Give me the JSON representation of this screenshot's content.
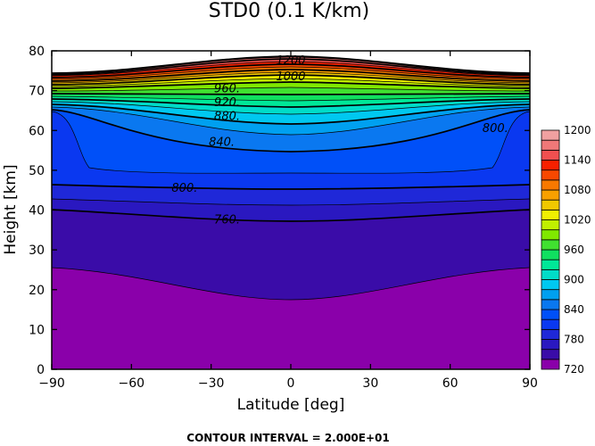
{
  "chart_data": {
    "type": "contour",
    "title": "STD0 (0.1 K/km)",
    "xlabel": "Latitude [deg]",
    "ylabel": "Height [km]",
    "xlim": [
      -90,
      90
    ],
    "ylim": [
      0,
      80
    ],
    "x_ticks": [
      -90,
      -60,
      -30,
      0,
      30,
      60,
      90
    ],
    "y_ticks": [
      0,
      10,
      20,
      30,
      40,
      50,
      60,
      70,
      80
    ],
    "x_tick_labels": [
      "−90",
      "−60",
      "−30",
      "0",
      "30",
      "60",
      "90"
    ],
    "y_tick_labels": [
      "0",
      "10",
      "20",
      "30",
      "40",
      "50",
      "60",
      "70",
      "80"
    ],
    "contour_interval_text": "CONTOUR INTERVAL = 2.000E+01",
    "grid": false,
    "colorbar": {
      "placement": "right",
      "levels": [
        720,
        740,
        760,
        780,
        800,
        820,
        840,
        860,
        880,
        900,
        920,
        940,
        960,
        980,
        1000,
        1020,
        1040,
        1060,
        1080,
        1100,
        1120,
        1140,
        1160,
        1180,
        1200
      ],
      "labels": [
        "720",
        "780",
        "840",
        "900",
        "960",
        "1020",
        "1080",
        "1140",
        "1200"
      ],
      "colors": [
        "#8a00aa",
        "#3a0ca8",
        "#2a18c0",
        "#1f28d8",
        "#0a38f0",
        "#0050f8",
        "#0a78f0",
        "#00a0f0",
        "#00c8f0",
        "#00dcc8",
        "#00e898",
        "#10e060",
        "#40e030",
        "#80e800",
        "#c0f000",
        "#f0f000",
        "#f0c800",
        "#f8a000",
        "#f87800",
        "#f84800",
        "#f82000",
        "#f05050",
        "#f07878",
        "#f0a0a0"
      ]
    },
    "contour_labels": [
      {
        "text": "1200",
        "lat": 0,
        "z": 77.5
      },
      {
        "text": "1000",
        "lat": 0,
        "z": 73.5
      },
      {
        "text": "960.",
        "lat": -24,
        "z": 70.5
      },
      {
        "text": "920.",
        "lat": -24,
        "z": 67
      },
      {
        "text": "880.",
        "lat": -24,
        "z": 63.5
      },
      {
        "text": "840.",
        "lat": -26,
        "z": 57
      },
      {
        "text": "800.",
        "lat": -40,
        "z": 45.5
      },
      {
        "text": "800.",
        "lat": 77,
        "z": 60.5
      },
      {
        "text": "760.",
        "lat": -24,
        "z": 37.5
      }
    ]
  }
}
